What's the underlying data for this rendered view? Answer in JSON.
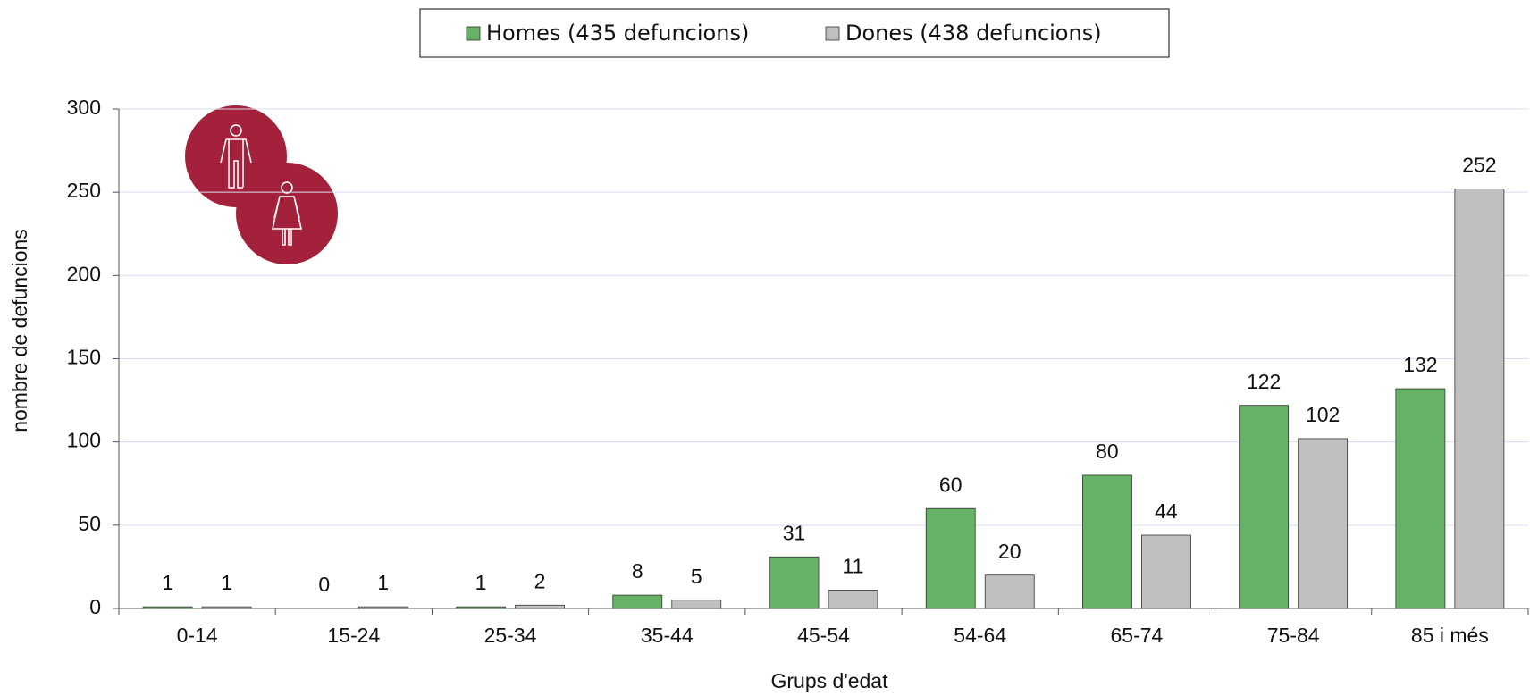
{
  "chart_data": {
    "type": "bar",
    "x_label": "Grups d'edat",
    "y_label": "nombre de defuncions",
    "categories": [
      "0-14",
      "15-24",
      "25-34",
      "35-44",
      "45-54",
      "54-64",
      "65-74",
      "75-84",
      "85 i més"
    ],
    "series": [
      {
        "name": "Homes (435 defuncions)",
        "color": "#66b266",
        "values": [
          1,
          0,
          1,
          8,
          31,
          60,
          80,
          122,
          132
        ]
      },
      {
        "name": "Dones (438 defuncions)",
        "color": "#c0c0c0",
        "values": [
          1,
          1,
          2,
          5,
          11,
          20,
          44,
          102,
          252
        ]
      }
    ],
    "ylim": [
      0,
      300
    ],
    "yticks": [
      0,
      50,
      100,
      150,
      200,
      250,
      300
    ],
    "grid": true,
    "legend": "top"
  }
}
